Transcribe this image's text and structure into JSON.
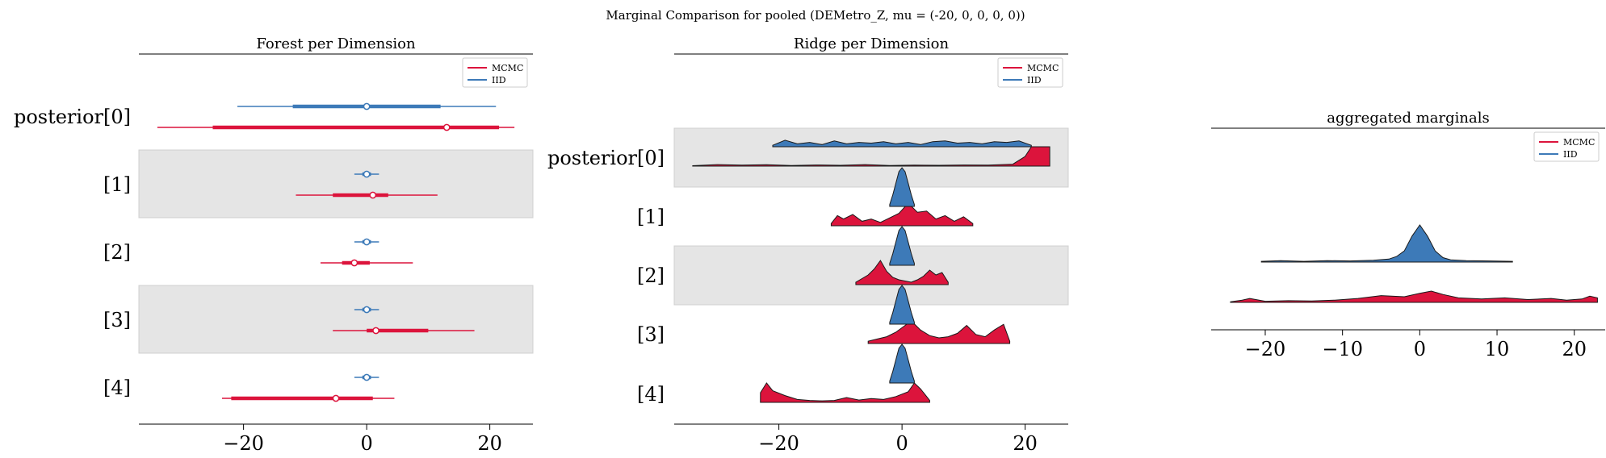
{
  "figure": {
    "suptitle": "Marginal Comparison for pooled (DEMetro_Z, mu = (-20, 0, 0, 0, 0))"
  },
  "colors": {
    "mcmc": "#dc143c",
    "iid": "#3d7ab8",
    "band": "#e5e5e5"
  },
  "legend": {
    "entries": [
      "MCMC",
      "IID"
    ]
  },
  "chart_data": [
    {
      "type": "forest",
      "title": "Forest per Dimension",
      "y_tick_labels": [
        "posterior[0]",
        "[1]",
        "[2]",
        "[3]",
        "[4]"
      ],
      "x_ticks": [
        -20,
        0,
        20
      ],
      "x_tick_labels": [
        "−20",
        "0",
        "20"
      ],
      "xlim": [
        -37,
        27
      ],
      "legend_placement": "top-right",
      "series": [
        {
          "name": "MCMC",
          "rows": [
            {
              "lo": -34,
              "q1": -25,
              "median": 13,
              "q3": 21.5,
              "hi": 24
            },
            {
              "lo": -11.5,
              "q1": -5.5,
              "median": 1,
              "q3": 3.5,
              "hi": 11.5
            },
            {
              "lo": -7.5,
              "q1": -4,
              "median": -2,
              "q3": 0.5,
              "hi": 7.5
            },
            {
              "lo": -5.5,
              "q1": 0,
              "median": 1.5,
              "q3": 10,
              "hi": 17.5
            },
            {
              "lo": -23.5,
              "q1": -22,
              "median": -5,
              "q3": 1,
              "hi": 4.5
            }
          ]
        },
        {
          "name": "IID",
          "rows": [
            {
              "lo": -21,
              "q1": -12,
              "median": 0,
              "q3": 12,
              "hi": 21
            },
            {
              "lo": -2,
              "q1": -0.7,
              "median": 0,
              "q3": 0.7,
              "hi": 2
            },
            {
              "lo": -2,
              "q1": -0.7,
              "median": 0,
              "q3": 0.7,
              "hi": 2
            },
            {
              "lo": -2,
              "q1": -0.7,
              "median": 0,
              "q3": 0.7,
              "hi": 2
            },
            {
              "lo": -2,
              "q1": -0.7,
              "median": 0,
              "q3": 0.7,
              "hi": 2
            }
          ]
        }
      ]
    },
    {
      "type": "ridge",
      "title": "Ridge per Dimension",
      "y_tick_labels": [
        "posterior[0]",
        "[1]",
        "[2]",
        "[3]",
        "[4]"
      ],
      "x_ticks": [
        -20,
        0,
        20
      ],
      "x_tick_labels": [
        "−20",
        "0",
        "20"
      ],
      "xlim": [
        -37,
        27
      ],
      "legend_placement": "top-right",
      "series": [
        {
          "name": "MCMC",
          "rows": [
            {
              "x": [
                -34,
                -30,
                -26,
                -22,
                -18,
                -14,
                -10,
                -6,
                -2,
                2,
                6,
                10,
                14,
                18,
                20,
                21,
                24
              ],
              "y": [
                0.02,
                0.08,
                0.05,
                0.07,
                0.03,
                0.06,
                0.04,
                0.08,
                0.03,
                0.05,
                0.04,
                0.06,
                0.05,
                0.1,
                0.5,
                1.0,
                1.0
              ]
            },
            {
              "x": [
                -11.5,
                -10.5,
                -9.5,
                -8,
                -6.5,
                -5,
                -3.5,
                -2,
                -0.5,
                1,
                2.5,
                4,
                5.5,
                7,
                8.5,
                10,
                11.5
              ],
              "y": [
                0.1,
                0.45,
                0.3,
                0.5,
                0.2,
                0.3,
                0.15,
                0.35,
                0.55,
                1.0,
                0.6,
                0.65,
                0.3,
                0.45,
                0.2,
                0.4,
                0.1
              ]
            },
            {
              "x": [
                -7.5,
                -6.5,
                -5.5,
                -4.5,
                -3.5,
                -2.5,
                -1.5,
                -0.5,
                0.5,
                1.5,
                2.5,
                3.5,
                4.5,
                5.5,
                6.5,
                7.5
              ],
              "y": [
                0.1,
                0.25,
                0.4,
                0.65,
                1.0,
                0.55,
                0.3,
                0.2,
                0.15,
                0.1,
                0.2,
                0.35,
                0.6,
                0.4,
                0.5,
                0.1
              ]
            },
            {
              "x": [
                -5.5,
                -4,
                -2.5,
                -1,
                0.5,
                1.5,
                3,
                4.5,
                6,
                7.5,
                9,
                10.5,
                12,
                13.5,
                15,
                16.5,
                17.5
              ],
              "y": [
                0.1,
                0.2,
                0.3,
                0.5,
                0.8,
                1.0,
                0.6,
                0.35,
                0.25,
                0.3,
                0.45,
                0.8,
                0.4,
                0.3,
                0.6,
                0.85,
                0.1
              ]
            },
            {
              "x": [
                -23,
                -22,
                -21,
                -19,
                -17,
                -15,
                -13,
                -11,
                -9,
                -7,
                -5,
                -3,
                -1,
                1,
                2,
                3,
                4.5
              ],
              "y": [
                0.5,
                1.0,
                0.6,
                0.35,
                0.15,
                0.1,
                0.08,
                0.1,
                0.25,
                0.12,
                0.2,
                0.15,
                0.3,
                0.55,
                1.0,
                0.7,
                0.1
              ]
            }
          ]
        },
        {
          "name": "IID",
          "rows": [
            {
              "x": [
                -21,
                -19,
                -17,
                -15,
                -13,
                -11,
                -9,
                -7,
                -5,
                -3,
                -1,
                1,
                3,
                5,
                7,
                9,
                11,
                13,
                15,
                17,
                19,
                21
              ],
              "y": [
                0.1,
                0.45,
                0.2,
                0.3,
                0.15,
                0.4,
                0.2,
                0.3,
                0.25,
                0.35,
                0.2,
                0.3,
                0.15,
                0.35,
                0.4,
                0.25,
                0.3,
                0.2,
                0.35,
                0.3,
                0.4,
                0.1
              ]
            },
            {
              "x": [
                -2,
                -1.5,
                -1,
                -0.5,
                0,
                0.5,
                1,
                1.5,
                2
              ],
              "y": [
                0.05,
                0.3,
                0.6,
                0.9,
                1.0,
                0.9,
                0.6,
                0.3,
                0.05
              ]
            },
            {
              "x": [
                -2,
                -1.5,
                -1,
                -0.5,
                0,
                0.5,
                1,
                1.5,
                2
              ],
              "y": [
                0.05,
                0.3,
                0.6,
                0.9,
                1.0,
                0.9,
                0.6,
                0.3,
                0.05
              ]
            },
            {
              "x": [
                -2,
                -1.5,
                -1,
                -0.5,
                0,
                0.5,
                1,
                1.5,
                2
              ],
              "y": [
                0.05,
                0.3,
                0.6,
                0.9,
                1.0,
                0.9,
                0.6,
                0.3,
                0.05
              ]
            },
            {
              "x": [
                -2,
                -1.5,
                -1,
                -0.5,
                0,
                0.5,
                1,
                1.5,
                2
              ],
              "y": [
                0.05,
                0.3,
                0.6,
                0.9,
                1.0,
                0.9,
                0.6,
                0.3,
                0.05
              ]
            }
          ]
        }
      ]
    },
    {
      "type": "area",
      "title": "aggregated marginals",
      "x_ticks": [
        -20,
        -10,
        0,
        10,
        20
      ],
      "x_tick_labels": [
        "−20",
        "−10",
        "0",
        "10",
        "20"
      ],
      "xlim": [
        -27,
        24
      ],
      "legend_placement": "top-right",
      "series": [
        {
          "name": "IID",
          "x": [
            -20.5,
            -18,
            -15,
            -12,
            -9,
            -6,
            -4,
            -3,
            -2,
            -1,
            0,
            1,
            2,
            3,
            4,
            6,
            9,
            12
          ],
          "y": [
            0.02,
            0.04,
            0.02,
            0.04,
            0.03,
            0.05,
            0.08,
            0.15,
            0.3,
            0.7,
            1.0,
            0.7,
            0.3,
            0.12,
            0.06,
            0.04,
            0.03,
            0.02
          ]
        },
        {
          "name": "MCMC",
          "x": [
            -24.5,
            -23,
            -22,
            -20,
            -17,
            -14,
            -11,
            -8,
            -5,
            -2,
            0,
            1.5,
            3,
            5,
            8,
            11,
            14,
            17,
            19,
            21,
            22,
            23
          ],
          "y": [
            0.05,
            0.2,
            0.35,
            0.1,
            0.15,
            0.12,
            0.2,
            0.35,
            0.6,
            0.5,
            0.8,
            1.0,
            0.7,
            0.4,
            0.3,
            0.4,
            0.25,
            0.35,
            0.2,
            0.3,
            0.55,
            0.4
          ]
        }
      ]
    }
  ]
}
